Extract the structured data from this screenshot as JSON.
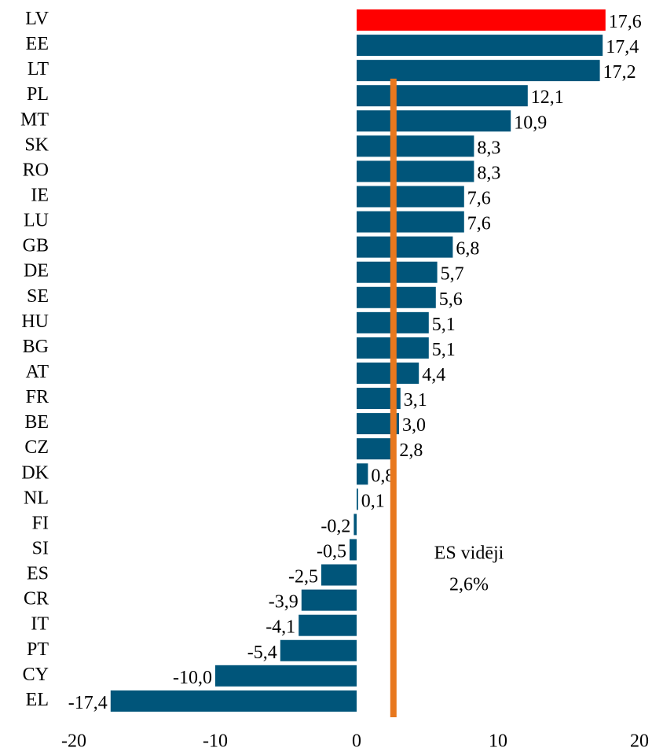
{
  "chart_data": {
    "type": "hbar",
    "categories": [
      "LV",
      "EE",
      "LT",
      "PL",
      "MT",
      "SK",
      "RO",
      "IE",
      "LU",
      "GB",
      "DE",
      "SE",
      "HU",
      "BG",
      "AT",
      "FR",
      "BE",
      "CZ",
      "DK",
      "NL",
      "FI",
      "SI",
      "ES",
      "CR",
      "IT",
      "PT",
      "CY",
      "EL"
    ],
    "values": [
      17.6,
      17.4,
      17.2,
      12.1,
      10.9,
      8.3,
      8.3,
      7.6,
      7.6,
      6.8,
      5.7,
      5.6,
      5.1,
      5.1,
      4.4,
      3.1,
      3.0,
      2.8,
      0.8,
      0.1,
      -0.2,
      -0.5,
      -2.5,
      -3.9,
      -4.1,
      -5.4,
      -10.0,
      -17.4
    ],
    "value_labels": [
      "17,6",
      "17,4",
      "17,2",
      "12,1",
      "10,9",
      "8,3",
      "8,3",
      "7,6",
      "7,6",
      "6,8",
      "5,7",
      "5,6",
      "5,1",
      "5,1",
      "4,4",
      "3,1",
      "3,0",
      "2,8",
      "0,8",
      "0,1",
      "-0,2",
      "-0,5",
      "-2,5",
      "-3,9",
      "-4,1",
      "-5,4",
      "-10,0",
      "-17,4"
    ],
    "colors": [
      "#ff0000",
      "#00557a",
      "#00557a",
      "#00557a",
      "#00557a",
      "#00557a",
      "#00557a",
      "#00557a",
      "#00557a",
      "#00557a",
      "#00557a",
      "#00557a",
      "#00557a",
      "#00557a",
      "#00557a",
      "#00557a",
      "#00557a",
      "#00557a",
      "#00557a",
      "#00557a",
      "#00557a",
      "#00557a",
      "#00557a",
      "#00557a",
      "#00557a",
      "#00557a",
      "#00557a",
      "#00557a"
    ],
    "xlim": [
      -20,
      20
    ],
    "xticks": [
      -20,
      -10,
      0,
      10,
      20
    ],
    "reference_line": {
      "value": 2.6,
      "label": "ES vidēji",
      "value_label": "2,6%",
      "color": "#e8781e"
    }
  }
}
